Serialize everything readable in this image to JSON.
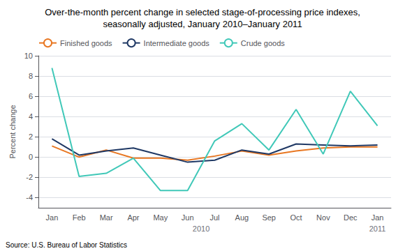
{
  "chart_data": {
    "type": "line",
    "title": "Over-the-month percent change in selected stage-of-processing price indexes,",
    "subtitle": "seasonally adjusted, January 2010–January 2011",
    "ylabel": "Percent change",
    "source": "Source: U.S. Bureau of Labor Statistics",
    "categories": [
      "Jan",
      "Feb",
      "Mar",
      "Apr",
      "May",
      "Jun",
      "Jul",
      "Aug",
      "Sep",
      "Oct",
      "Nov",
      "Dec",
      "Jan"
    ],
    "series": [
      {
        "name": "Finished goods",
        "color": "#E87722",
        "values": [
          1.1,
          0.0,
          0.7,
          -0.1,
          -0.1,
          -0.3,
          0.1,
          0.6,
          0.2,
          0.6,
          0.9,
          1.0,
          1.0
        ]
      },
      {
        "name": "Intermediate goods",
        "color": "#1F3864",
        "values": [
          1.8,
          0.2,
          0.6,
          0.9,
          0.2,
          -0.5,
          -0.3,
          0.7,
          0.3,
          1.3,
          1.2,
          1.1,
          1.2
        ]
      },
      {
        "name": "Crude goods",
        "color": "#40C8B8",
        "values": [
          8.8,
          -1.9,
          -1.6,
          -0.1,
          -3.3,
          -3.3,
          1.6,
          3.3,
          0.7,
          4.7,
          0.3,
          6.5,
          3.1
        ]
      }
    ],
    "annotations": [
      {
        "text": "2010",
        "x": 5.5
      },
      {
        "text": "2011",
        "x": 12
      }
    ],
    "ylim": [
      -5,
      10
    ],
    "yticks": [
      -4,
      -2,
      0,
      2,
      4,
      6,
      8,
      10
    ],
    "grid": true,
    "legend": "upper left"
  }
}
